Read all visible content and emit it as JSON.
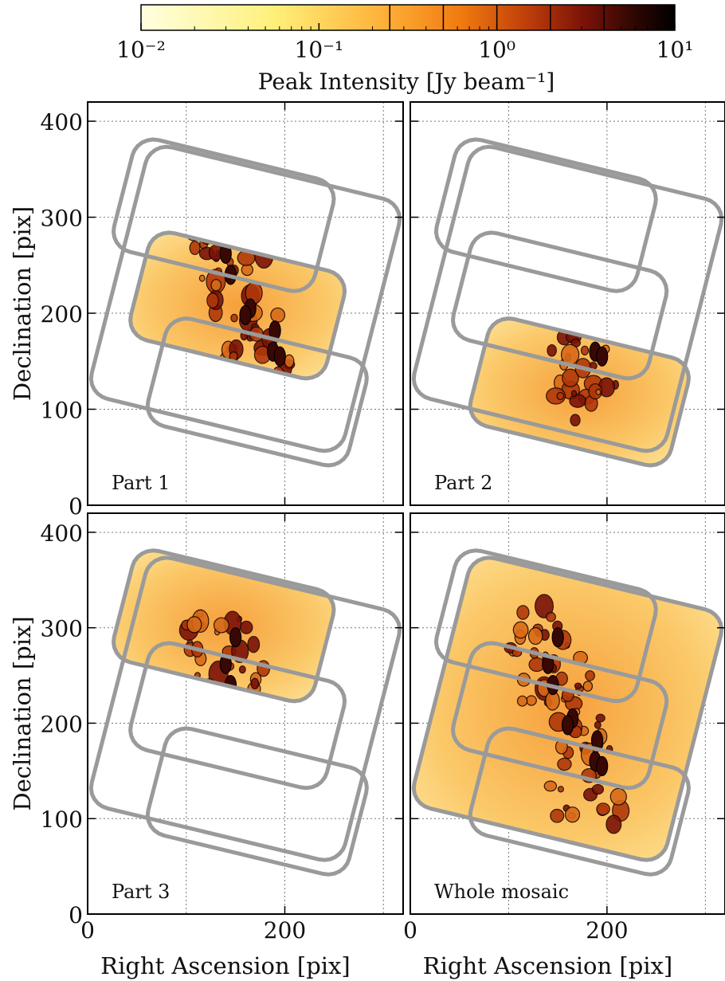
{
  "colorbar": {
    "label": "Peak Intensity [Jy beam⁻¹]",
    "scale": "log",
    "range": [
      0.01,
      10
    ],
    "tick_labels": [
      "10⁻²",
      "10⁻¹",
      "10⁰",
      "10¹"
    ],
    "tick_values": [
      0.01,
      0.1,
      1,
      10
    ],
    "contour_levels": [
      0.25,
      0.5,
      1,
      2,
      4
    ],
    "colormap": [
      "#ffffe0",
      "#fff07a",
      "#ffb23a",
      "#f07a10",
      "#c0400a",
      "#7a1208",
      "#2a0602",
      "#000000"
    ]
  },
  "chart_data": [
    {
      "type": "heatmap",
      "annotation": "Part 1",
      "xlabel": "",
      "ylabel": "Declination [pix]",
      "xlim": [
        0,
        320
      ],
      "ylim": [
        0,
        420
      ],
      "x_ticks": [
        0,
        200
      ],
      "y_ticks": [
        0,
        100,
        200,
        300,
        400
      ],
      "grid": true,
      "filled_region": "middle",
      "fields": [
        "outer",
        "middle",
        "lower",
        "upper"
      ]
    },
    {
      "type": "heatmap",
      "annotation": "Part 2",
      "xlabel": "",
      "ylabel": "",
      "xlim": [
        0,
        320
      ],
      "ylim": [
        0,
        420
      ],
      "x_ticks": [
        0,
        200
      ],
      "y_ticks": [
        0,
        100,
        200,
        300,
        400
      ],
      "grid": true,
      "filled_region": "lower",
      "fields": [
        "outer",
        "middle",
        "lower",
        "upper"
      ]
    },
    {
      "type": "heatmap",
      "annotation": "Part 3",
      "xlabel": "Right Ascension [pix]",
      "ylabel": "Declination [pix]",
      "xlim": [
        0,
        320
      ],
      "ylim": [
        0,
        420
      ],
      "x_ticks": [
        0,
        200
      ],
      "y_ticks": [
        0,
        100,
        200,
        300,
        400
      ],
      "grid": true,
      "filled_region": "upper",
      "fields": [
        "outer",
        "middle",
        "lower",
        "upper"
      ]
    },
    {
      "type": "heatmap",
      "annotation": "Whole mosaic",
      "xlabel": "Right Ascension [pix]",
      "ylabel": "",
      "xlim": [
        0,
        320
      ],
      "ylim": [
        0,
        420
      ],
      "x_ticks": [
        0,
        200
      ],
      "y_ticks": [
        0,
        100,
        200,
        300,
        400
      ],
      "grid": true,
      "filled_region": "whole",
      "fields": [
        "outer",
        "middle",
        "lower",
        "upper"
      ]
    }
  ]
}
